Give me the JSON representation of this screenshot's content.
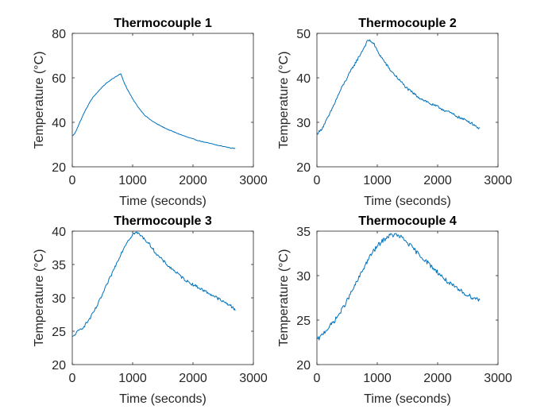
{
  "chart_data": [
    {
      "type": "line",
      "title": "Thermocouple 1",
      "xlabel": "Time (seconds)",
      "ylabel": "Temperature (°C)",
      "xlim": [
        0,
        3000
      ],
      "ylim": [
        20,
        80
      ],
      "xticks": [
        0,
        1000,
        2000,
        3000
      ],
      "yticks": [
        20,
        40,
        60,
        80
      ],
      "grid": false,
      "series": [
        {
          "color": "#0072BD",
          "noise": 0.15,
          "x": [
            0,
            30,
            60,
            100,
            150,
            200,
            250,
            300,
            350,
            400,
            450,
            500,
            550,
            600,
            650,
            700,
            750,
            800,
            850,
            900,
            950,
            1000,
            1100,
            1200,
            1300,
            1400,
            1500,
            1600,
            1700,
            1800,
            1900,
            2000,
            2100,
            2200,
            2300,
            2400,
            2500,
            2600,
            2700
          ],
          "y": [
            34,
            34.5,
            36,
            38.5,
            41.5,
            44.5,
            47,
            49.5,
            51.5,
            53,
            54.5,
            56,
            57.2,
            58.3,
            59.3,
            60.2,
            61,
            62,
            58.5,
            55.5,
            53,
            50.5,
            46.5,
            43.2,
            41,
            39.3,
            37.9,
            36.6,
            35.5,
            34.4,
            33.4,
            32.5,
            31.7,
            31,
            30.4,
            29.7,
            29.2,
            28.6,
            28.2
          ]
        }
      ]
    },
    {
      "type": "line",
      "title": "Thermocouple 2",
      "xlabel": "Time (seconds)",
      "ylabel": "Temperature (°C)",
      "xlim": [
        0,
        3000
      ],
      "ylim": [
        20,
        50
      ],
      "xticks": [
        0,
        1000,
        2000,
        3000
      ],
      "yticks": [
        20,
        30,
        40,
        50
      ],
      "grid": false,
      "series": [
        {
          "color": "#0072BD",
          "noise": 0.3,
          "x": [
            0,
            50,
            100,
            200,
            300,
            400,
            500,
            600,
            700,
            800,
            850,
            900,
            950,
            1000,
            1100,
            1200,
            1300,
            1400,
            1500,
            1600,
            1700,
            1800,
            1900,
            2000,
            2100,
            2200,
            2300,
            2400,
            2500,
            2600,
            2700
          ],
          "y": [
            27.5,
            28,
            29,
            31.5,
            34.5,
            37.5,
            40,
            42.5,
            44.8,
            47.3,
            48.5,
            48.2,
            47.5,
            46,
            44,
            42,
            40.5,
            39,
            37.5,
            36.5,
            35.5,
            34.8,
            34,
            33.5,
            32.8,
            32.2,
            31.5,
            30.8,
            30.3,
            29.5,
            28.5
          ]
        }
      ]
    },
    {
      "type": "line",
      "title": "Thermocouple 3",
      "xlabel": "Time (seconds)",
      "ylabel": "Temperature (°C)",
      "xlim": [
        0,
        3000
      ],
      "ylim": [
        20,
        40
      ],
      "xticks": [
        0,
        1000,
        2000,
        3000
      ],
      "yticks": [
        20,
        25,
        30,
        35,
        40
      ],
      "grid": false,
      "series": [
        {
          "color": "#0072BD",
          "noise": 0.22,
          "x": [
            0,
            50,
            100,
            200,
            300,
            400,
            500,
            600,
            700,
            800,
            900,
            1000,
            1050,
            1100,
            1200,
            1300,
            1400,
            1500,
            1600,
            1700,
            1800,
            1900,
            2000,
            2100,
            2200,
            2300,
            2400,
            2500,
            2600,
            2700
          ],
          "y": [
            24,
            24.6,
            25,
            25.8,
            27,
            28.6,
            30.5,
            32.5,
            34.5,
            36.5,
            38.3,
            39.5,
            39.8,
            39.6,
            38.8,
            37.8,
            36.5,
            35.6,
            34.7,
            34,
            33.2,
            32.5,
            32,
            31.5,
            31,
            30.5,
            30,
            29.4,
            29,
            28.2
          ]
        }
      ]
    },
    {
      "type": "line",
      "title": "Thermocouple 4",
      "xlabel": "Time (seconds)",
      "ylabel": "Temperature (°C)",
      "xlim": [
        0,
        3000
      ],
      "ylim": [
        20,
        35
      ],
      "xticks": [
        0,
        1000,
        2000,
        3000
      ],
      "yticks": [
        20,
        25,
        30,
        35
      ],
      "grid": false,
      "series": [
        {
          "color": "#0072BD",
          "noise": 0.25,
          "x": [
            0,
            50,
            100,
            200,
            300,
            400,
            500,
            600,
            700,
            800,
            900,
            1000,
            1100,
            1200,
            1300,
            1400,
            1500,
            1600,
            1700,
            1800,
            1900,
            2000,
            2100,
            2200,
            2300,
            2400,
            2500,
            2600,
            2700
          ],
          "y": [
            22.8,
            23,
            23.5,
            24.2,
            25,
            26,
            27.2,
            28.5,
            29.8,
            31.2,
            32.4,
            33.3,
            34,
            34.5,
            34.6,
            34.3,
            33.7,
            33,
            32.3,
            31.7,
            31,
            30.4,
            29.7,
            29.1,
            28.6,
            28.2,
            27.8,
            27.5,
            27.3
          ]
        }
      ]
    }
  ]
}
